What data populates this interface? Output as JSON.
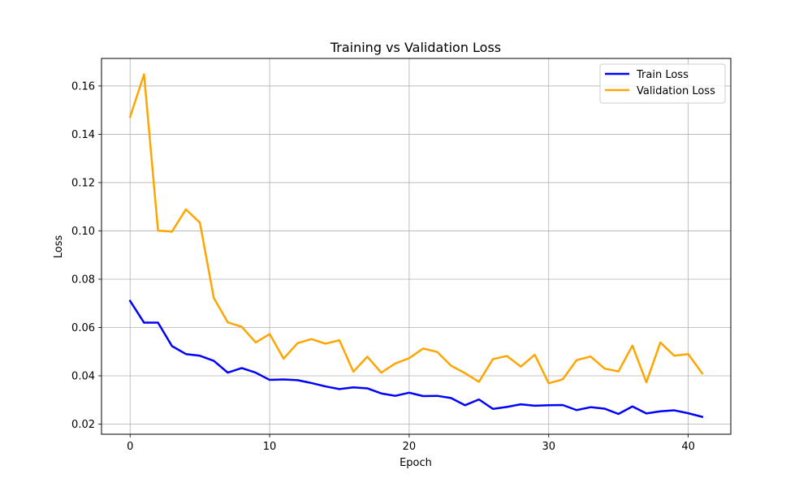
{
  "chart_data": {
    "type": "line",
    "title": "Training vs Validation Loss",
    "xlabel": "Epoch",
    "ylabel": "Loss",
    "xlim": [
      -2.05,
      43.05
    ],
    "ylim": [
      0.0158,
      0.1714
    ],
    "xticks": [
      0,
      10,
      20,
      30,
      40
    ],
    "yticks": [
      0.02,
      0.04,
      0.06,
      0.08,
      0.1,
      0.12,
      0.14,
      0.16
    ],
    "ytick_labels": [
      "0.02",
      "0.04",
      "0.06",
      "0.08",
      "0.10",
      "0.12",
      "0.14",
      "0.16"
    ],
    "grid": true,
    "legend_position": "top-right",
    "x": [
      0,
      1,
      2,
      3,
      4,
      5,
      6,
      7,
      8,
      9,
      10,
      11,
      12,
      13,
      14,
      15,
      16,
      17,
      18,
      19,
      20,
      21,
      22,
      23,
      24,
      25,
      26,
      27,
      28,
      29,
      30,
      31,
      32,
      33,
      34,
      35,
      36,
      37,
      38,
      39,
      40,
      41
    ],
    "series": [
      {
        "name": "Train Loss",
        "color": "#0000ff",
        "values": [
          0.071,
          0.062,
          0.062,
          0.0523,
          0.049,
          0.0483,
          0.0462,
          0.0413,
          0.0432,
          0.0413,
          0.0383,
          0.0385,
          0.0382,
          0.037,
          0.0356,
          0.0345,
          0.0352,
          0.0348,
          0.0327,
          0.0317,
          0.033,
          0.0316,
          0.0317,
          0.0308,
          0.0278,
          0.0302,
          0.0263,
          0.0271,
          0.0282,
          0.0276,
          0.0278,
          0.0279,
          0.0258,
          0.027,
          0.0264,
          0.0242,
          0.0273,
          0.0244,
          0.0253,
          0.0257,
          0.0245,
          0.023
        ]
      },
      {
        "name": "Validation Loss",
        "color": "#ffa500",
        "values": [
          0.1472,
          0.1648,
          0.1001,
          0.0997,
          0.1089,
          0.1034,
          0.0722,
          0.0621,
          0.0603,
          0.0538,
          0.0573,
          0.0471,
          0.0535,
          0.0552,
          0.0533,
          0.0547,
          0.0417,
          0.0479,
          0.0413,
          0.0451,
          0.0473,
          0.0513,
          0.0499,
          0.0442,
          0.0411,
          0.0375,
          0.0469,
          0.0482,
          0.0438,
          0.0487,
          0.0369,
          0.0385,
          0.0465,
          0.048,
          0.043,
          0.0418,
          0.0525,
          0.0373,
          0.0538,
          0.0483,
          0.049,
          0.041
        ]
      }
    ]
  }
}
